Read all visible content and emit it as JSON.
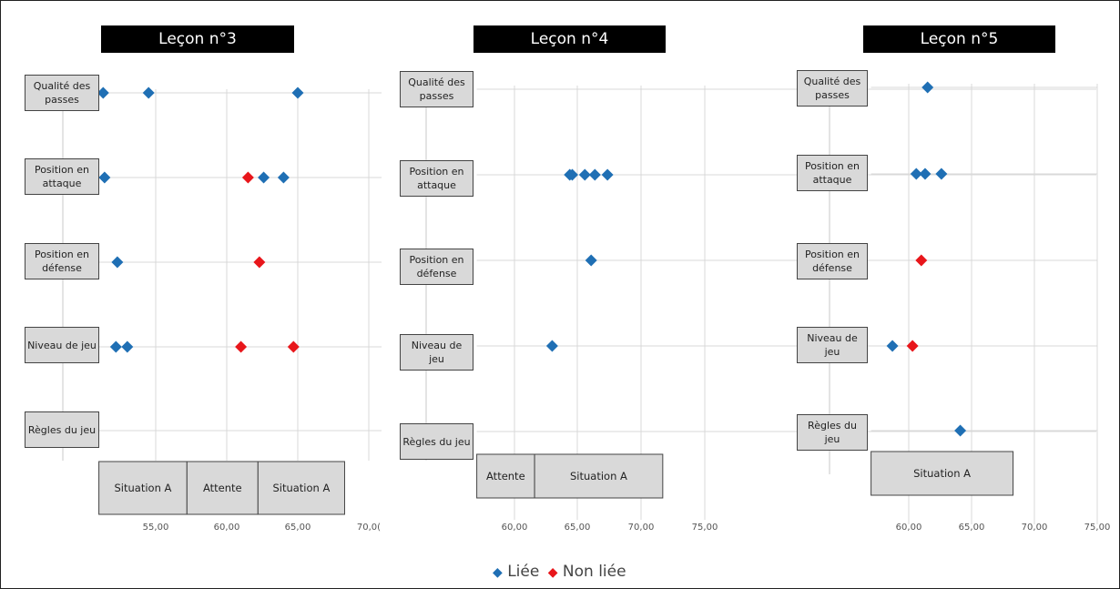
{
  "legend": {
    "linked": "Liée",
    "unlinked": "Non liée",
    "linked_color": "#1f6fb4",
    "unlinked_color": "#e8161b"
  },
  "chart_data": [
    {
      "type": "scatter",
      "title": "Leçon n°3",
      "categories": [
        "Qualité des passes",
        "Position en attaque",
        "Position en défense",
        "Niveau de jeu",
        "Règles du jeu"
      ],
      "xlim": [
        51,
        70
      ],
      "xticks": [
        "55,00",
        "60,00",
        "65,00",
        "70,0("
      ],
      "series": [
        {
          "name": "Liée",
          "points": [
            {
              "x": 51.3,
              "cat": "Qualité des passes"
            },
            {
              "x": 54.5,
              "cat": "Qualité des passes"
            },
            {
              "x": 65.0,
              "cat": "Qualité des passes"
            },
            {
              "x": 51.4,
              "cat": "Position en attaque"
            },
            {
              "x": 62.6,
              "cat": "Position en attaque"
            },
            {
              "x": 64.0,
              "cat": "Position en attaque"
            },
            {
              "x": 52.3,
              "cat": "Position en défense"
            },
            {
              "x": 52.2,
              "cat": "Niveau de jeu"
            },
            {
              "x": 53.0,
              "cat": "Niveau de jeu"
            }
          ]
        },
        {
          "name": "Non liée",
          "points": [
            {
              "x": 61.5,
              "cat": "Position en attaque"
            },
            {
              "x": 62.3,
              "cat": "Position en défense"
            },
            {
              "x": 61.0,
              "cat": "Niveau de jeu"
            },
            {
              "x": 64.7,
              "cat": "Niveau de jeu"
            }
          ]
        }
      ],
      "phases": [
        {
          "label": "Situation A",
          "from": 51,
          "to": 57.2
        },
        {
          "label": "Attente",
          "from": 57.2,
          "to": 62.2
        },
        {
          "label": "Situation A",
          "from": 62.2,
          "to": 68.3
        }
      ]
    },
    {
      "type": "scatter",
      "title": "Leçon n°4",
      "categories": [
        "Qualité des passes",
        "Position en attaque",
        "Position en défense",
        "Niveau de jeu",
        "Règles du jeu"
      ],
      "xlim": [
        57,
        75
      ],
      "xticks": [
        "60,00",
        "65,00",
        "70,00",
        "75,00"
      ],
      "series": [
        {
          "name": "Liée",
          "points": [
            {
              "x": 64.4,
              "cat": "Position en attaque"
            },
            {
              "x": 64.6,
              "cat": "Position en attaque"
            },
            {
              "x": 65.6,
              "cat": "Position en attaque"
            },
            {
              "x": 66.4,
              "cat": "Position en attaque"
            },
            {
              "x": 67.4,
              "cat": "Position en attaque"
            },
            {
              "x": 66.1,
              "cat": "Position en défense"
            },
            {
              "x": 63.0,
              "cat": "Niveau de jeu"
            }
          ]
        },
        {
          "name": "Non liée",
          "points": []
        }
      ],
      "phases": [
        {
          "label": "Attente",
          "from": 57,
          "to": 61.6
        },
        {
          "label": "Situation A",
          "from": 61.6,
          "to": 71.8
        }
      ]
    },
    {
      "type": "scatter",
      "title": "Leçon n°5",
      "categories": [
        "Qualité des passes",
        "Position en attaque",
        "Position en défense",
        "Niveau de jeu",
        "Règles du jeu"
      ],
      "xlim": [
        57,
        75
      ],
      "xticks": [
        "60,00",
        "65,00",
        "70,00",
        "75,00"
      ],
      "series": [
        {
          "name": "Liée",
          "points": [
            {
              "x": 61.5,
              "cat": "Qualité des passes"
            },
            {
              "x": 60.6,
              "cat": "Position en attaque"
            },
            {
              "x": 61.3,
              "cat": "Position en attaque"
            },
            {
              "x": 62.6,
              "cat": "Position en attaque"
            },
            {
              "x": 58.7,
              "cat": "Niveau de jeu"
            },
            {
              "x": 64.1,
              "cat": "Règles du jeu"
            }
          ]
        },
        {
          "name": "Non liée",
          "points": [
            {
              "x": 61.0,
              "cat": "Position en défense"
            },
            {
              "x": 60.3,
              "cat": "Niveau de jeu"
            }
          ]
        }
      ],
      "phases": [
        {
          "label": "Situation A",
          "from": 57,
          "to": 68.3
        }
      ]
    }
  ]
}
